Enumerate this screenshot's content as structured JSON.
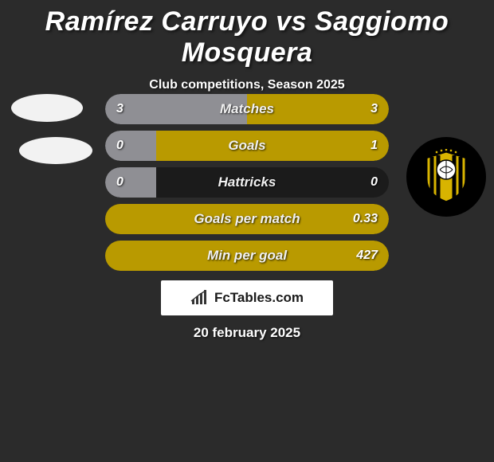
{
  "title": "Ramírez Carruyo vs Saggiomo Mosquera",
  "subtitle": "Club competitions, Season 2025",
  "date": "20 february 2025",
  "brand": "FcTables.com",
  "colors": {
    "left_fill": "#8f8f94",
    "right_fill": "#b99a00",
    "bar_bg": "#1b1b1b",
    "crest_yellow": "#d8b400",
    "crest_black": "#000000"
  },
  "bars": [
    {
      "label": "Matches",
      "left_val": "3",
      "right_val": "3",
      "left_pct": 50,
      "right_pct": 50
    },
    {
      "label": "Goals",
      "left_val": "0",
      "right_val": "1",
      "left_pct": 18,
      "right_pct": 82
    },
    {
      "label": "Hattricks",
      "left_val": "0",
      "right_val": "0",
      "left_pct": 18,
      "right_pct": 0
    },
    {
      "label": "Goals per match",
      "left_val": "",
      "right_val": "0.33",
      "left_pct": 0,
      "right_pct": 100
    },
    {
      "label": "Min per goal",
      "left_val": "",
      "right_val": "427",
      "left_pct": 0,
      "right_pct": 100
    }
  ]
}
